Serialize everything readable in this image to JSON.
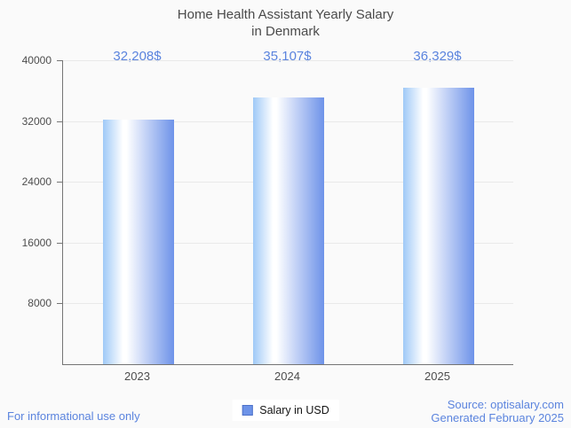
{
  "title": {
    "line1": "Home Health Assistant Yearly Salary",
    "line2": "in Denmark"
  },
  "chart_data": {
    "type": "bar",
    "title": "Home Health Assistant Yearly Salary in Denmark",
    "categories": [
      "2023",
      "2024",
      "2025"
    ],
    "series": [
      {
        "name": "Salary in USD",
        "values": [
          32208,
          35107,
          36329
        ]
      }
    ],
    "value_labels": [
      "32,208$",
      "35,107$",
      "36,329$"
    ],
    "ylim": [
      0,
      40000
    ],
    "yticks": [
      8000,
      16000,
      24000,
      32000,
      40000
    ],
    "grid": true,
    "legend_position": "bottom-center"
  },
  "legend": {
    "items": [
      {
        "label": "Salary in USD",
        "marker_color": "#6d93e8",
        "marker_border": "#4e72c9"
      }
    ]
  },
  "footer": {
    "left_note": "For informational use only",
    "source_line1": "Source: optisalary.com",
    "source_line2": "Generated February 2025"
  },
  "colors": {
    "background": "#fafafa",
    "accent_blue": "#5b84de",
    "title_text": "#4b4b4b",
    "axis_text": "#4d4d4d",
    "axis_line": "#757575",
    "grid_line": "#e9e9e9",
    "bar_gradient": [
      "#9fc9f7",
      "#ffffff",
      "#6e93e9"
    ]
  }
}
